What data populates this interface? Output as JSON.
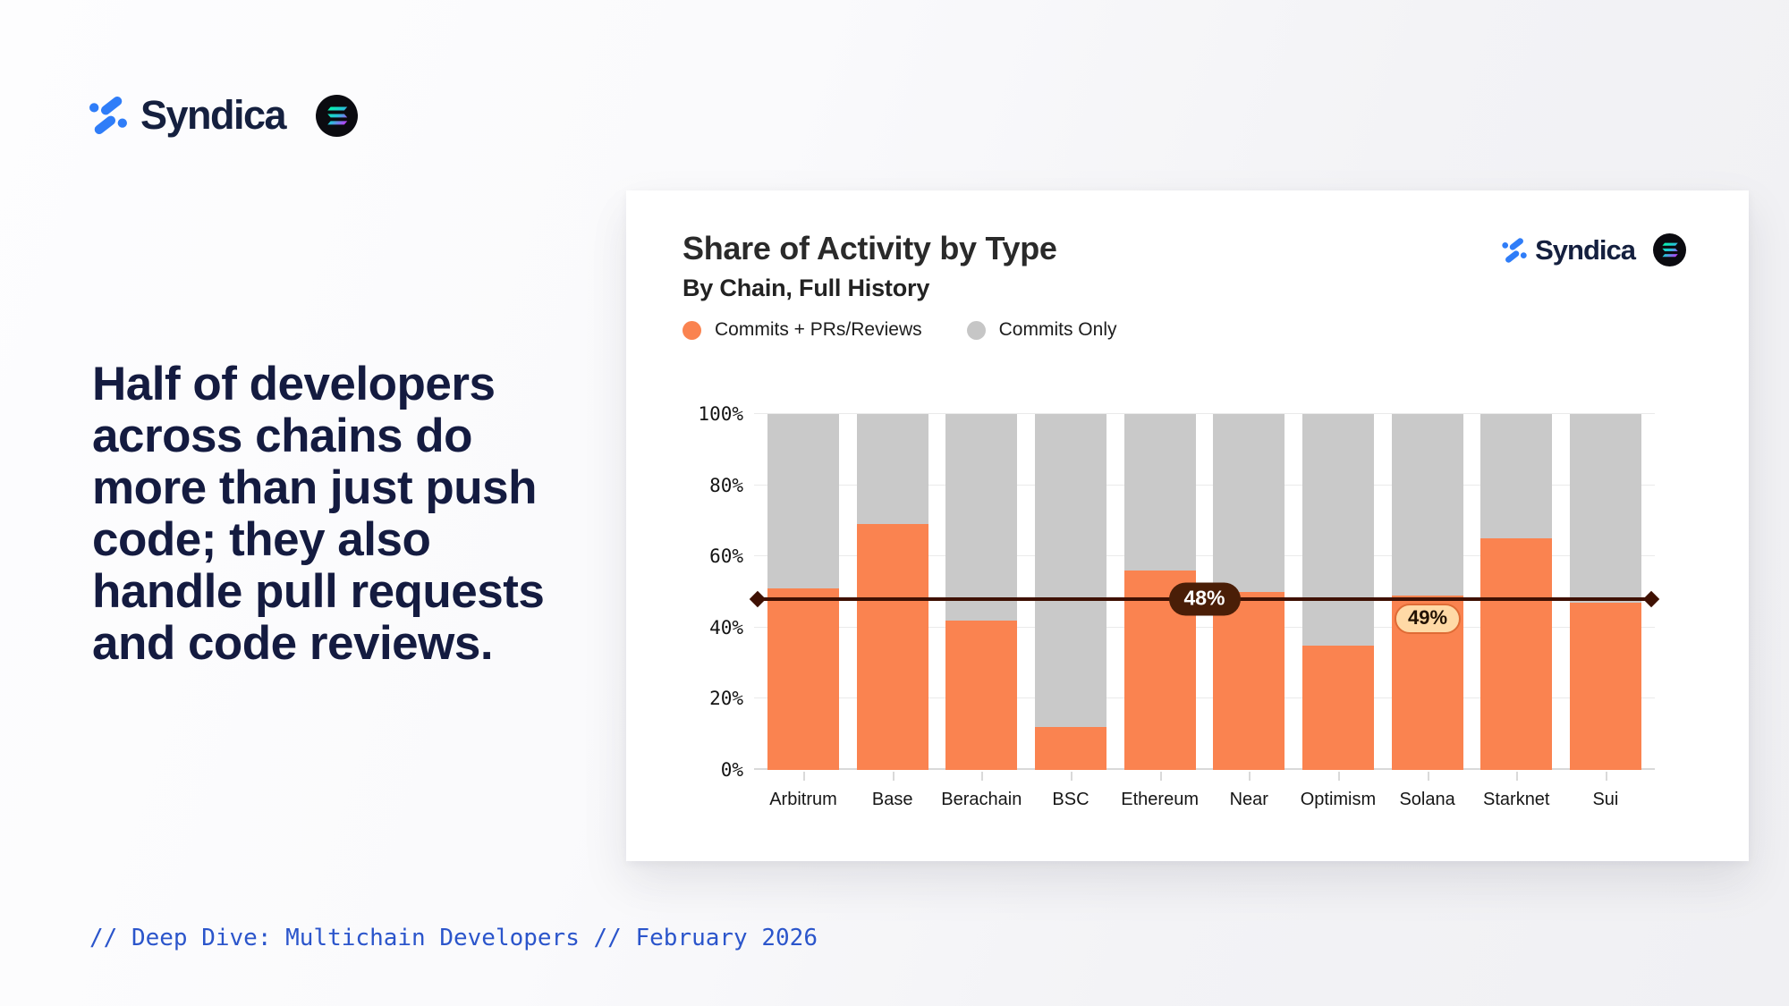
{
  "page": {
    "brand": {
      "wordmark": "Syndica"
    },
    "headline": "Half of developers\nacross chains do\nmore than just push\ncode; they also\nhandle pull requests\nand code reviews.",
    "footer": "// Deep Dive: Multichain Developers // February 2026"
  },
  "card": {
    "title": "Share of Activity by Type",
    "subtitle": "By Chain, Full History",
    "brand": {
      "wordmark": "Syndica"
    },
    "legend": [
      {
        "label": "Commits + PRs/Reviews",
        "color": "#FA8350"
      },
      {
        "label": "Commits Only",
        "color": "#C9C9C9"
      }
    ]
  },
  "colors": {
    "headline_navy": "#141B40",
    "footer_blue": "#2B55CB",
    "bar_orange": "#FA8350",
    "bar_gray": "#C9C9C9",
    "reference_line": "#3F1103",
    "avg_badge_bg": "#4A1E07",
    "callout_bg": "#FFD9A6",
    "callout_border": "#DF6B35",
    "syndica_blue": "#2F7DF8"
  },
  "chart_data": {
    "type": "bar",
    "stacked": true,
    "title": "Share of Activity by Type",
    "subtitle": "By Chain, Full History",
    "xlabel": "",
    "ylabel": "",
    "ylim": [
      0,
      100
    ],
    "grid": true,
    "legend_position": "top-left",
    "categories": [
      "Arbitrum",
      "Base",
      "Berachain",
      "BSC",
      "Ethereum",
      "Near",
      "Optimism",
      "Solana",
      "Starknet",
      "Sui"
    ],
    "series": [
      {
        "name": "Commits + PRs/Reviews",
        "color": "#FA8350",
        "values": [
          51,
          69,
          42,
          12,
          56,
          50,
          35,
          49,
          65,
          47
        ]
      },
      {
        "name": "Commits Only",
        "color": "#C9C9C9",
        "values": [
          49,
          31,
          58,
          88,
          44,
          50,
          65,
          51,
          35,
          53
        ]
      }
    ],
    "yticks": [
      "0%",
      "20%",
      "40%",
      "60%",
      "80%",
      "100%"
    ],
    "reference_line": {
      "value": 48,
      "label": "48%",
      "color": "#3F1103"
    },
    "callout": {
      "category": "Solana",
      "value": 49,
      "label": "49%"
    }
  }
}
